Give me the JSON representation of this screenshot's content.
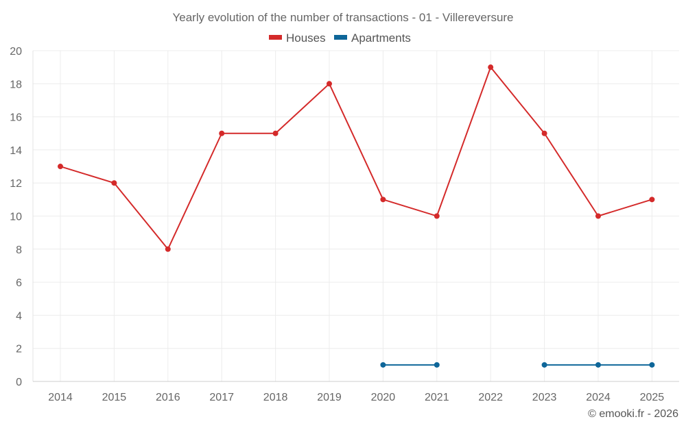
{
  "chart_data": {
    "type": "line",
    "title": "Yearly evolution of the number of transactions - 01 - Villereversure",
    "categories": [
      "2014",
      "2015",
      "2016",
      "2017",
      "2018",
      "2019",
      "2020",
      "2021",
      "2022",
      "2023",
      "2024",
      "2025"
    ],
    "series": [
      {
        "name": "Houses",
        "color": "#d42a2a",
        "values": [
          13,
          12,
          8,
          15,
          15,
          18,
          11,
          10,
          19,
          15,
          10,
          11
        ]
      },
      {
        "name": "Apartments",
        "color": "#0e6699",
        "values": [
          null,
          null,
          null,
          null,
          null,
          null,
          1,
          1,
          null,
          1,
          1,
          1
        ]
      }
    ],
    "ylim": [
      0,
      20
    ],
    "yticks": [
      0,
      2,
      4,
      6,
      8,
      10,
      12,
      14,
      16,
      18,
      20
    ],
    "xlabel": "",
    "ylabel": "",
    "grid": true,
    "legend_position": "top-center"
  },
  "credit": "© emooki.fr - 2026"
}
